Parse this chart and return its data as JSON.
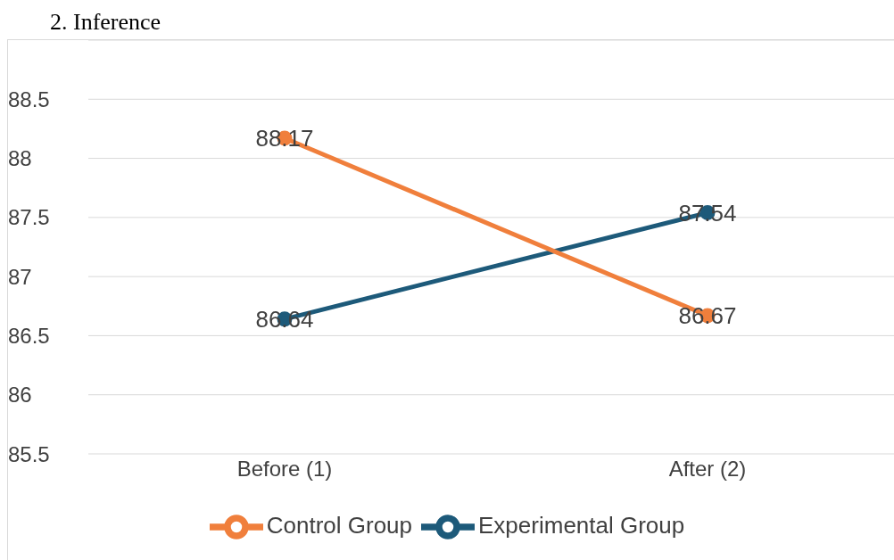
{
  "chart_data": {
    "type": "line",
    "title": "2.   Inference",
    "categories": [
      "Before (1)",
      "After (2)"
    ],
    "series": [
      {
        "name": "Experimental Group",
        "color": "#1d5a7a",
        "values": [
          86.64,
          87.54
        ]
      },
      {
        "name": "Control Group",
        "color": "#f07f3c",
        "values": [
          88.17,
          86.67
        ]
      }
    ],
    "ylim": [
      85.5,
      89
    ],
    "yticks": [
      85.5,
      86,
      86.5,
      87,
      87.5,
      88,
      88.5
    ],
    "grid": "y",
    "legend": "bottom",
    "marker": "circle",
    "line_style": "solid",
    "data_labels": true
  }
}
